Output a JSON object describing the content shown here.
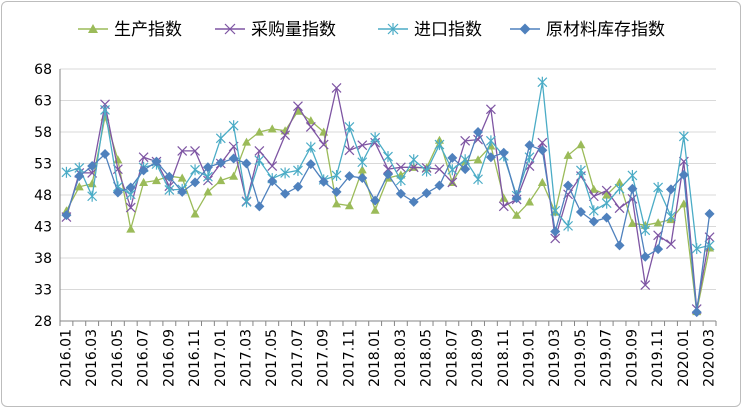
{
  "chart_data": {
    "type": "line",
    "title": "",
    "xlabel": "",
    "ylabel": "",
    "ylim": [
      28,
      68
    ],
    "yticks": [
      28,
      33,
      38,
      43,
      48,
      53,
      58,
      63,
      68
    ],
    "grid": "horizontal",
    "legend_position": "top-right",
    "x": [
      "2016.01",
      "2016.02",
      "2016.03",
      "2016.04",
      "2016.05",
      "2016.06",
      "2016.07",
      "2016.08",
      "2016.09",
      "2016.10",
      "2016.11",
      "2016.12",
      "2017.01",
      "2017.02",
      "2017.03",
      "2017.04",
      "2017.05",
      "2017.06",
      "2017.07",
      "2017.08",
      "2017.09",
      "2017.10",
      "2017.11",
      "2017.12",
      "2018.01",
      "2018.02",
      "2018.03",
      "2018.04",
      "2018.05",
      "2018.06",
      "2018.07",
      "2018.08",
      "2018.09",
      "2018.10",
      "2018.11",
      "2018.12",
      "2019.01",
      "2019.02",
      "2019.03",
      "2019.04",
      "2019.05",
      "2019.06",
      "2019.07",
      "2019.08",
      "2019.09",
      "2019.10",
      "2019.11",
      "2019.12",
      "2020.01",
      "2020.02",
      "2020.03"
    ],
    "xtick_labels": [
      "2016.01",
      "2016.03",
      "2016.05",
      "2016.07",
      "2016.09",
      "2016.11",
      "2017.01",
      "2017.03",
      "2017.05",
      "2017.07",
      "2017.09",
      "2017.11",
      "2018.01",
      "2018.03",
      "2018.05",
      "2018.07",
      "2018.09",
      "2018.11",
      "2019.01",
      "2019.03",
      "2019.05",
      "2019.07",
      "2019.09",
      "2019.11",
      "2020.01",
      "2020.03"
    ],
    "series": [
      {
        "name": "生产指数",
        "color": "#9bbb59",
        "marker": "triangle",
        "values": [
          45.5,
          49.3,
          49.8,
          60.4,
          53.6,
          42.6,
          50,
          50.3,
          51,
          50.7,
          45,
          48.5,
          50.3,
          51,
          56.4,
          58,
          58.5,
          58.2,
          61.3,
          59.8,
          58,
          46.6,
          46.3,
          52,
          45.6,
          50.7,
          51.2,
          52.4,
          52.3,
          56.7,
          50,
          53.4,
          53.6,
          55.8,
          47.5,
          44.8,
          46.9,
          50,
          45.3,
          54.3,
          56,
          48.9,
          48,
          50,
          43.5,
          43.2,
          43.6,
          44.1,
          46.6,
          29.5,
          39.6
        ]
      },
      {
        "name": "采购量指数",
        "color": "#7e55a3",
        "marker": "cross",
        "values": [
          44.5,
          51.5,
          51.5,
          62.4,
          52.1,
          46,
          54,
          53.3,
          49.4,
          55,
          55,
          50.3,
          53,
          55.7,
          47,
          55,
          52.6,
          57.5,
          62.1,
          58.8,
          56,
          65,
          55.1,
          55.9,
          56.3,
          52.1,
          52.4,
          52.4,
          52.3,
          52.1,
          50,
          56.6,
          56.8,
          61.6,
          46.2,
          47.3,
          52.6,
          56.3,
          41.1,
          48.1,
          51,
          47.8,
          48.7,
          45.9,
          47.4,
          33.7,
          41.6,
          40.2,
          53.3,
          29.9,
          41.3
        ]
      },
      {
        "name": "进口指数",
        "color": "#4bacc6",
        "marker": "asterisk",
        "values": [
          51.6,
          52.3,
          47.8,
          61.5,
          49.3,
          48.1,
          52.4,
          52.9,
          48.8,
          48.9,
          52,
          50.9,
          57,
          59,
          46.9,
          53.5,
          50.6,
          51.5,
          51.9,
          55.6,
          50.4,
          51.1,
          58.8,
          53.2,
          57.1,
          54.1,
          50.3,
          53.6,
          51.8,
          56,
          52,
          53.6,
          50.5,
          56.6,
          54.2,
          47.9,
          54,
          65.9,
          45.5,
          43.1,
          51.9,
          45.5,
          46.7,
          49,
          51.1,
          42.4,
          49.2,
          44.6,
          57.3,
          39.5,
          40
        ]
      },
      {
        "name": "原材料库存指数",
        "color": "#4f81bd",
        "marker": "diamond",
        "values": [
          44.8,
          51,
          52.6,
          54.5,
          48.4,
          49.2,
          51.9,
          53.3,
          50.9,
          48.5,
          50,
          52.4,
          53.1,
          53.8,
          53,
          46.2,
          50.2,
          48.2,
          49.3,
          52.9,
          50.1,
          48.5,
          51,
          50.7,
          47.1,
          51.3,
          48.2,
          46.9,
          48.3,
          49.5,
          53.9,
          52.1,
          58,
          54,
          54.7,
          47.5,
          55.9,
          55.1,
          42.2,
          49.5,
          45.3,
          43.8,
          44.4,
          40,
          49,
          38.2,
          39.4,
          48.9,
          51.2,
          29.4,
          45
        ]
      }
    ]
  }
}
